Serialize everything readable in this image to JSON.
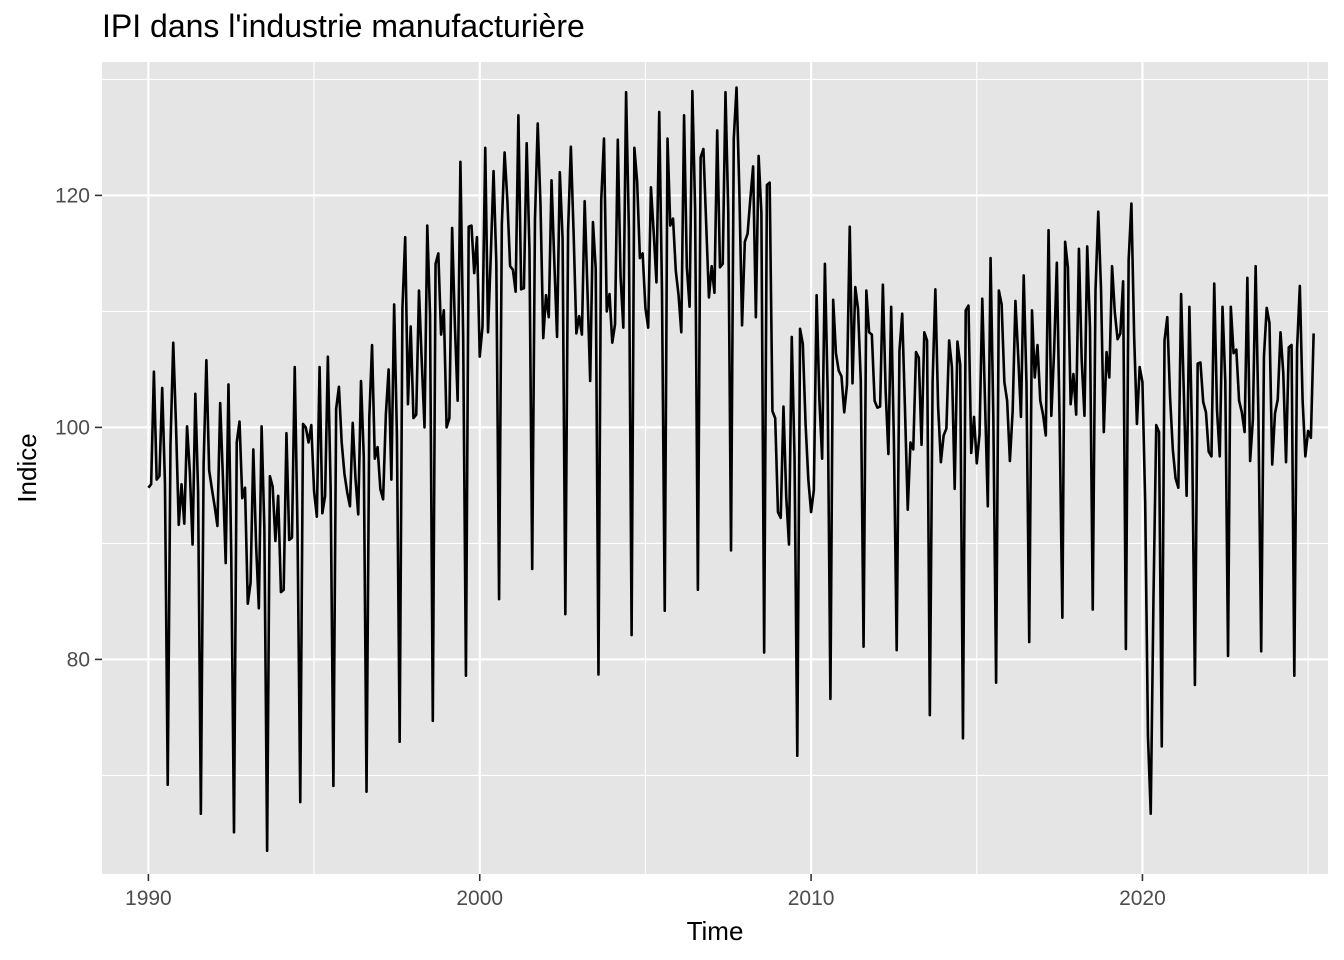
{
  "chart_data": {
    "type": "line",
    "title": "IPI dans l'industrie manufacturière",
    "xlabel": "Time",
    "ylabel": "Indice",
    "x_start": 1990.0,
    "x_step": 0.0833333,
    "xlim": [
      1988.6,
      2025.6
    ],
    "ylim": [
      61.5,
      131.5
    ],
    "x_ticks": [
      1990,
      2000,
      2010,
      2020
    ],
    "y_ticks": [
      80,
      100,
      120
    ],
    "grid": true,
    "legend": "none",
    "background": "#e5e5e5",
    "line_color": "#000000",
    "series": [
      {
        "values": [
          94.8,
          95.1,
          104.8,
          95.5,
          95.8,
          103.4,
          95.2,
          69.2,
          98.5,
          107.3,
          100.2,
          91.6,
          95.1,
          91.7,
          100.1,
          96.2,
          89.9,
          102.9,
          94.5,
          66.7,
          96.8,
          105.8,
          96.3,
          94.7,
          93.2,
          91.5,
          102.1,
          95.6,
          88.3,
          103.7,
          89.1,
          65.1,
          98.7,
          100.5,
          93.9,
          94.8,
          84.8,
          86.6,
          98.1,
          89.9,
          84.4,
          100.1,
          91.3,
          63.5,
          95.8,
          94.9,
          90.2,
          94.1,
          85.8,
          86.0,
          99.5,
          90.3,
          90.5,
          105.2,
          91.2,
          67.7,
          100.3,
          100.0,
          98.7,
          100.2,
          94.5,
          92.3,
          105.2,
          92.6,
          94.1,
          106.1,
          94.8,
          69.1,
          101.6,
          103.5,
          98.7,
          96.0,
          94.4,
          93.2,
          100.4,
          95.6,
          92.5,
          104.0,
          97.5,
          68.6,
          100.8,
          107.1,
          97.3,
          98.3,
          94.7,
          93.8,
          101.1,
          105.0,
          95.5,
          110.6,
          99.4,
          72.9,
          110.3,
          116.4,
          102.0,
          108.7,
          100.8,
          101.1,
          111.8,
          105.7,
          100.0,
          117.4,
          109.7,
          74.7,
          114.1,
          115.0,
          108.0,
          110.1,
          100.0,
          100.8,
          117.2,
          108.8,
          102.3,
          122.9,
          107.8,
          78.6,
          117.3,
          117.4,
          113.3,
          116.4,
          106.1,
          108.7,
          124.1,
          108.2,
          114.8,
          122.1,
          114.2,
          85.2,
          117.5,
          123.7,
          119.6,
          113.9,
          113.6,
          111.7,
          126.9,
          111.9,
          112.0,
          124.5,
          115.4,
          87.8,
          117.9,
          126.2,
          119.2,
          107.7,
          111.4,
          109.5,
          121.3,
          114.3,
          107.8,
          122.0,
          116.3,
          83.9,
          117.0,
          124.2,
          116.7,
          108.1,
          109.6,
          108.0,
          119.5,
          111.9,
          104.0,
          117.7,
          113.7,
          78.7,
          119.6,
          124.9,
          110.0,
          111.5,
          107.3,
          108.9,
          124.8,
          113.0,
          108.6,
          128.9,
          117.2,
          82.1,
          124.1,
          121.2,
          114.6,
          115.0,
          110.3,
          108.6,
          120.7,
          116.8,
          112.5,
          127.2,
          111.7,
          84.2,
          124.9,
          117.4,
          118.0,
          113.5,
          111.4,
          108.2,
          126.9,
          113.8,
          110.4,
          129.0,
          118.8,
          86.0,
          123.3,
          124.0,
          117.6,
          111.2,
          113.9,
          111.6,
          125.6,
          113.8,
          114.1,
          128.9,
          118.6,
          89.4,
          124.9,
          129.3,
          120.6,
          108.8,
          116.0,
          116.7,
          119.7,
          122.5,
          109.5,
          123.4,
          118.5,
          80.6,
          120.9,
          121.1,
          101.4,
          100.8,
          92.7,
          92.2,
          101.8,
          94.0,
          89.9,
          107.8,
          97.5,
          71.7,
          108.5,
          107.2,
          100.3,
          95.5,
          92.7,
          94.6,
          111.4,
          102.4,
          97.3,
          114.1,
          103.1,
          76.6,
          111.0,
          106.4,
          104.9,
          104.4,
          101.3,
          103.7,
          117.3,
          103.8,
          112.1,
          110.2,
          104.0,
          81.1,
          111.8,
          108.2,
          108.0,
          102.3,
          101.7,
          101.8,
          112.3,
          103.1,
          97.7,
          110.4,
          98.7,
          80.8,
          106.6,
          109.8,
          101.6,
          92.9,
          98.7,
          98.1,
          106.5,
          106.0,
          98.5,
          108.2,
          107.5,
          75.2,
          103.9,
          111.9,
          101.8,
          97.0,
          99.3,
          99.9,
          107.5,
          105.2,
          94.7,
          107.4,
          105.4,
          73.2,
          110.1,
          110.5,
          97.8,
          100.9,
          96.9,
          99.4,
          111.1,
          102.1,
          93.2,
          114.6,
          100.9,
          78.0,
          111.8,
          110.6,
          103.9,
          102.3,
          97.1,
          101.4,
          110.9,
          106.2,
          100.9,
          113.1,
          103.8,
          81.5,
          110.1,
          104.3,
          107.1,
          102.3,
          101.1,
          99.3,
          117.0,
          101.0,
          106.5,
          114.2,
          100.4,
          83.6,
          116.0,
          113.8,
          102.0,
          104.6,
          101.1,
          115.4,
          105.8,
          101.0,
          115.6,
          108.6,
          84.3,
          111.8,
          118.6,
          111.9,
          99.6,
          106.5,
          104.3,
          113.9,
          109.9,
          107.6,
          108.1,
          112.6,
          80.9,
          114.4,
          119.3,
          107.8,
          100.3,
          105.2,
          103.9,
          93.4,
          73.4,
          66.7,
          85.4,
          100.2,
          99.6,
          72.5,
          107.5,
          109.5,
          102.6,
          98.1,
          95.6,
          94.8,
          111.5,
          102.9,
          94.1,
          110.4,
          98.9,
          77.8,
          105.5,
          105.6,
          102.2,
          101.3,
          97.9,
          97.5,
          112.4,
          101.5,
          97.5,
          110.4,
          104.0,
          80.3,
          110.4,
          106.4,
          106.7,
          102.3,
          101.3,
          99.6,
          112.9,
          97.1,
          100.7,
          113.9,
          100.9,
          80.7,
          106.1,
          110.3,
          109.0,
          96.8,
          101.2,
          102.4,
          108.2,
          104.7,
          97.0,
          106.9,
          107.1,
          78.6,
          106.8,
          112.2,
          102.3,
          97.5,
          99.7,
          99.1,
          108.1
        ]
      }
    ]
  }
}
